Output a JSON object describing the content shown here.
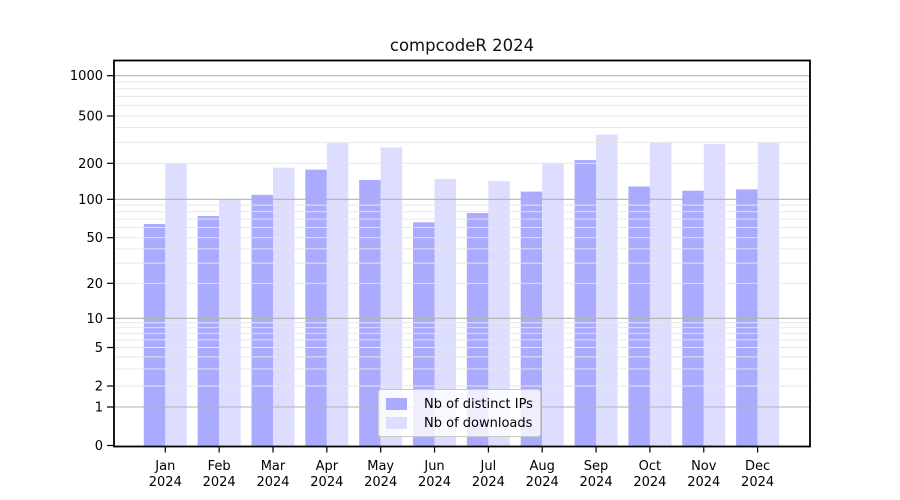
{
  "chart_data": {
    "type": "bar",
    "title": "compcodeR 2024",
    "categories": [
      "Jan",
      "Feb",
      "Mar",
      "Apr",
      "May",
      "Jun",
      "Jul",
      "Aug",
      "Sep",
      "Oct",
      "Nov",
      "Dec"
    ],
    "x_tick_year": "2024",
    "series": [
      {
        "name": "Nb of distinct IPs",
        "color": "#aaaaff",
        "values": [
          64,
          74,
          109,
          177,
          145,
          66,
          78,
          116,
          213,
          128,
          118,
          121
        ]
      },
      {
        "name": "Nb of downloads",
        "color": "#ddddff",
        "values": [
          199,
          100,
          184,
          296,
          272,
          148,
          142,
          202,
          348,
          302,
          290,
          297
        ]
      }
    ],
    "y_ticks": [
      0,
      1,
      2,
      5,
      10,
      20,
      50,
      100,
      200,
      500,
      1000
    ],
    "y_scale": "log-like",
    "ylim": [
      0,
      1200
    ],
    "grid": {
      "major_ticks": [
        1,
        10,
        100,
        1000
      ],
      "major_color": "#b2b2b2",
      "minor_color": "#e7e7e7"
    },
    "legend": {
      "position": "bottom-center"
    },
    "axis_color": "#000000",
    "background_color": "#ffffff"
  }
}
